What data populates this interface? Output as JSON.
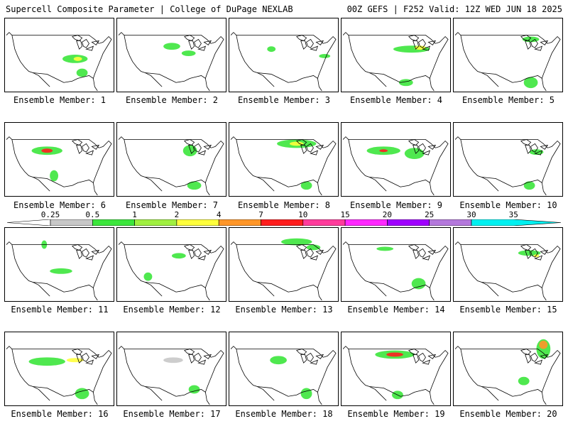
{
  "header": {
    "left": "Supercell Composite Parameter | College of DuPage NEXLAB",
    "right": "00Z GEFS | F252 Valid: 12Z WED JUN 18 2025"
  },
  "colorbar": {
    "ticks": [
      "0.25",
      "0.5",
      "1",
      "2",
      "4",
      "7",
      "10",
      "15",
      "20",
      "25",
      "30",
      "35"
    ],
    "colors": [
      "#c8c8c8",
      "#3ce63c",
      "#a0f040",
      "#ffff3c",
      "#ff9628",
      "#ff1e1e",
      "#ff3c9c",
      "#ff28ff",
      "#a000ff",
      "#b478dc",
      "#00f0f0"
    ]
  },
  "members": [
    {
      "label": "Ensemble Member: 1"
    },
    {
      "label": "Ensemble Member: 2"
    },
    {
      "label": "Ensemble Member: 3"
    },
    {
      "label": "Ensemble Member: 4"
    },
    {
      "label": "Ensemble Member: 5"
    },
    {
      "label": "Ensemble Member: 6"
    },
    {
      "label": "Ensemble Member: 7"
    },
    {
      "label": "Ensemble Member: 8"
    },
    {
      "label": "Ensemble Member: 9"
    },
    {
      "label": "Ensemble Member: 10"
    },
    {
      "label": "Ensemble Member: 11"
    },
    {
      "label": "Ensemble Member: 12"
    },
    {
      "label": "Ensemble Member: 13"
    },
    {
      "label": "Ensemble Member: 14"
    },
    {
      "label": "Ensemble Member: 15"
    },
    {
      "label": "Ensemble Member: 16"
    },
    {
      "label": "Ensemble Member: 17"
    },
    {
      "label": "Ensemble Member: 18"
    },
    {
      "label": "Ensemble Member: 19"
    },
    {
      "label": "Ensemble Member: 20"
    }
  ]
}
